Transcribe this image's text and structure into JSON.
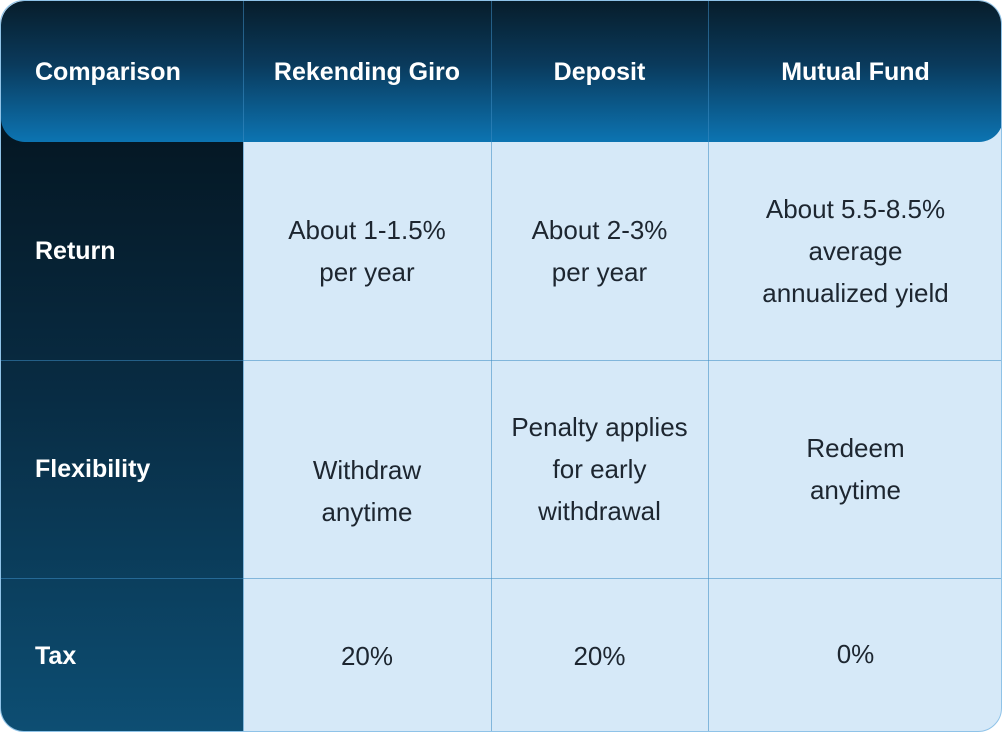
{
  "header": {
    "comparison": "Comparison",
    "col1": "Rekending Giro",
    "col2": "Deposit",
    "col3": "Mutual Fund"
  },
  "rows": [
    {
      "label": "Return",
      "c1": "About 1-1.5%\nper year",
      "c2": "About 2-3%\nper year",
      "c3": "About 5.5-8.5%\naverage\nannualized yield"
    },
    {
      "label": "Flexibility",
      "c1": "Withdraw\nanytime",
      "c2": "Penalty applies\nfor early\nwithdrawal",
      "c3": "Redeem\nanytime"
    },
    {
      "label": "Tax",
      "c1": "20%",
      "c2": "20%",
      "c3": "0%"
    }
  ],
  "colors": {
    "header_top": "#071d2b",
    "header_bottom": "#0c74b2",
    "cell_background": "#d6e9f8",
    "grid_line": "#9ccbea",
    "body_text": "#1d2630"
  }
}
